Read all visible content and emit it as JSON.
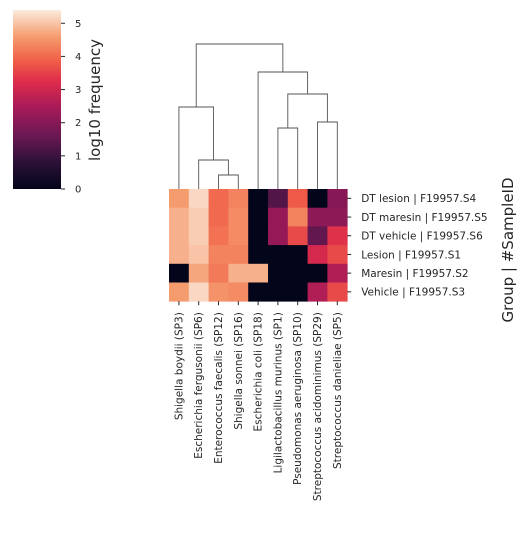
{
  "chart_data": {
    "type": "heatmap",
    "colorbar": {
      "label": "log10 frequency",
      "ticks": [
        "0",
        "1",
        "2",
        "3",
        "4",
        "5"
      ],
      "range": [
        0,
        5.4
      ]
    },
    "ylabel": "Group | #SampleID",
    "columns": [
      "Shigella boydii (SP3)",
      "Escherichia fergusonii (SP6)",
      "Enterococcus faecalis (SP12)",
      "Shigella sonnei (SP16)",
      "Escherichia coli (SP18)",
      "Ligilactobacillus murinus (SP1)",
      "Pseudomonas aeruginosa (SP10)",
      "Streptococcus acidominimus (SP29)",
      "Streptococcus danieliae (SP5)"
    ],
    "rows": [
      "DT lesion | F19957.S4",
      "DT maresin | F19957.S5",
      "DT vehicle | F19957.S6",
      "Lesion | F19957.S1",
      "Maresin | F19957.S2",
      "Vehicle | F19957.S3"
    ],
    "values": [
      [
        4.6,
        5.2,
        4.0,
        4.3,
        0.0,
        1.3,
        3.8,
        0.0,
        2.0
      ],
      [
        4.8,
        5.1,
        4.0,
        4.4,
        0.0,
        2.2,
        4.3,
        2.1,
        2.1
      ],
      [
        4.8,
        5.1,
        4.1,
        4.4,
        0.0,
        2.2,
        3.6,
        1.5,
        3.3
      ],
      [
        4.8,
        5.0,
        4.3,
        4.3,
        0.0,
        0.0,
        0.0,
        3.1,
        3.6
      ],
      [
        0.0,
        4.7,
        4.2,
        4.8,
        4.8,
        0.0,
        0.0,
        0.0,
        2.6
      ],
      [
        4.6,
        5.2,
        4.5,
        4.4,
        0.0,
        0.0,
        0.0,
        2.6,
        3.6
      ]
    ]
  }
}
